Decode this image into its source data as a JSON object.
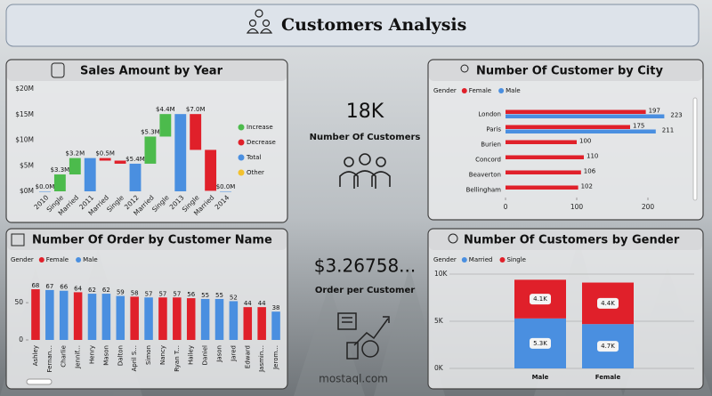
{
  "header": {
    "title": "Customers Analysis"
  },
  "kpis": [
    {
      "value": "18K",
      "label": "Number Of Customers"
    },
    {
      "value": "$3.26758...",
      "label": "Order per Customer"
    }
  ],
  "watermark": "mostaql.com",
  "chart_data": [
    {
      "type": "waterfall",
      "title": "Sales Amount by Year",
      "categories": [
        "2010",
        "Single",
        "Married",
        "2011",
        "Married",
        "Single",
        "2012",
        "Married",
        "Single",
        "2013",
        "Single",
        "Married",
        "2014"
      ],
      "measure": [
        "total",
        "relative",
        "relative",
        "total",
        "relative",
        "relative",
        "total",
        "relative",
        "relative",
        "total",
        "relative",
        "relative",
        "total"
      ],
      "values": [
        0,
        3.3,
        3.2,
        6.5,
        -0.5,
        -0.6,
        5.4,
        5.3,
        4.4,
        15.1,
        -7.0,
        -8.0,
        0
      ],
      "value_labels": [
        "$0.0M",
        "$3.3M",
        "$3.2M",
        null,
        "$0.5M",
        null,
        "$5.4M",
        "$5.3M",
        "$4.4M",
        null,
        "$7.0M",
        null,
        "$0.0M"
      ],
      "colors": {
        "increase": "#4cbb4c",
        "decrease": "#e0202a",
        "total": "#4a8fe0"
      },
      "legend": [
        {
          "name": "Increase",
          "color": "#4cbb4c"
        },
        {
          "name": "Decrease",
          "color": "#e0202a"
        },
        {
          "name": "Total",
          "color": "#4a8fe0"
        },
        {
          "name": "Other",
          "color": "#f2c12e"
        }
      ],
      "ylim": [
        0,
        20
      ],
      "yticks": [
        {
          "value": 0,
          "label": "$0M"
        },
        {
          "value": 5,
          "label": "$5M"
        },
        {
          "value": 10,
          "label": "$10M"
        },
        {
          "value": 15,
          "label": "$15M"
        },
        {
          "value": 20,
          "label": "$20M"
        }
      ],
      "grid": false
    },
    {
      "type": "hbar",
      "title": "Number Of Customer by City",
      "legend_title": "Gender",
      "categories": [
        "London",
        "Paris",
        "Burien",
        "Concord",
        "Beaverton",
        "Bellingham"
      ],
      "series": [
        {
          "name": "Female",
          "color": "#e0202a",
          "values": [
            197,
            175,
            100,
            110,
            106,
            102
          ]
        },
        {
          "name": "Male",
          "color": "#4a8fe0",
          "values": [
            223,
            211,
            null,
            null,
            null,
            null
          ]
        }
      ],
      "xlim": [
        0,
        260
      ],
      "xticks": [
        0,
        100,
        200
      ],
      "grid": false
    },
    {
      "type": "bar",
      "title": "Number Of Order by Customer Name",
      "legend_title": "Gender",
      "categories": [
        "Ashley",
        "Fernan...",
        "Charlie",
        "Jennif...",
        "Henry",
        "Mason",
        "Dalton",
        "April S...",
        "Simon",
        "Nancy",
        "Ryan T...",
        "Hailey",
        "Daniel",
        "Jason",
        "Jared",
        "Edward",
        "Jasmin...",
        "Jerom..."
      ],
      "series": [
        {
          "name": "Female",
          "color": "#e0202a",
          "values": [
            68,
            null,
            null,
            64,
            null,
            null,
            null,
            58,
            null,
            57,
            57,
            56,
            null,
            null,
            null,
            44,
            44,
            null
          ]
        },
        {
          "name": "Male",
          "color": "#4a8fe0",
          "values": [
            null,
            67,
            66,
            null,
            62,
            62,
            59,
            null,
            57,
            null,
            null,
            null,
            55,
            55,
            52,
            null,
            null,
            38
          ]
        }
      ],
      "ylim": [
        0,
        80
      ],
      "yticks": [
        0,
        50
      ],
      "grid": false
    },
    {
      "type": "stacked",
      "title": "Number Of Customers by Gender",
      "legend_title": "Gender",
      "categories": [
        "Male",
        "Female"
      ],
      "series": [
        {
          "name": "Married",
          "color": "#4a8fe0",
          "values": [
            5300,
            4700
          ],
          "value_labels": [
            "5.3K",
            "4.7K"
          ]
        },
        {
          "name": "Single",
          "color": "#e0202a",
          "values": [
            4100,
            4400
          ],
          "value_labels": [
            "4.1K",
            "4.4K"
          ]
        }
      ],
      "ylim": [
        0,
        10000
      ],
      "yticks": [
        {
          "value": 0,
          "label": "0K"
        },
        {
          "value": 5000,
          "label": "5K"
        },
        {
          "value": 10000,
          "label": "10K"
        }
      ],
      "grid": true
    }
  ]
}
